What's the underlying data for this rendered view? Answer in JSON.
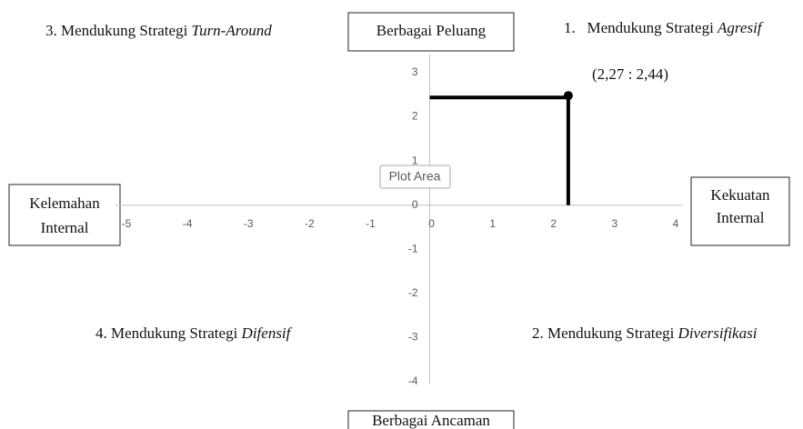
{
  "chart_data": {
    "type": "scatter",
    "xlim": [
      -5,
      4
    ],
    "ylim": [
      -4,
      3
    ],
    "xticks": [
      -5,
      -4,
      -3,
      -2,
      -1,
      0,
      1,
      2,
      3,
      4
    ],
    "yticks": [
      -4,
      -3,
      -2,
      -1,
      0,
      1,
      2,
      3
    ],
    "series": [
      {
        "color": "#000000",
        "x": [
          2.27
        ],
        "values": [
          2.44
        ],
        "value_labels": [
          "(2,27 : 2,44)"
        ]
      }
    ],
    "quadrants": [
      {
        "text": "1.   Mendukung Strategi ",
        "emphasis": "Agresif"
      },
      {
        "text": "2. Mendukung Strategi ",
        "emphasis": "Diversifikasi"
      },
      {
        "text": "3. Mendukung Strategi ",
        "emphasis": "Turn-Around"
      },
      {
        "text": "4. Mendukung Strategi ",
        "emphasis": "Difensif"
      }
    ],
    "axis_labels": {
      "top": "Berbagai Peluang",
      "bottom": "Berbagai Ancaman",
      "left": [
        "Kelemahan",
        "Internal"
      ],
      "right": [
        "Kekuatan",
        "Internal"
      ]
    },
    "tooltip": "Plot Area"
  }
}
